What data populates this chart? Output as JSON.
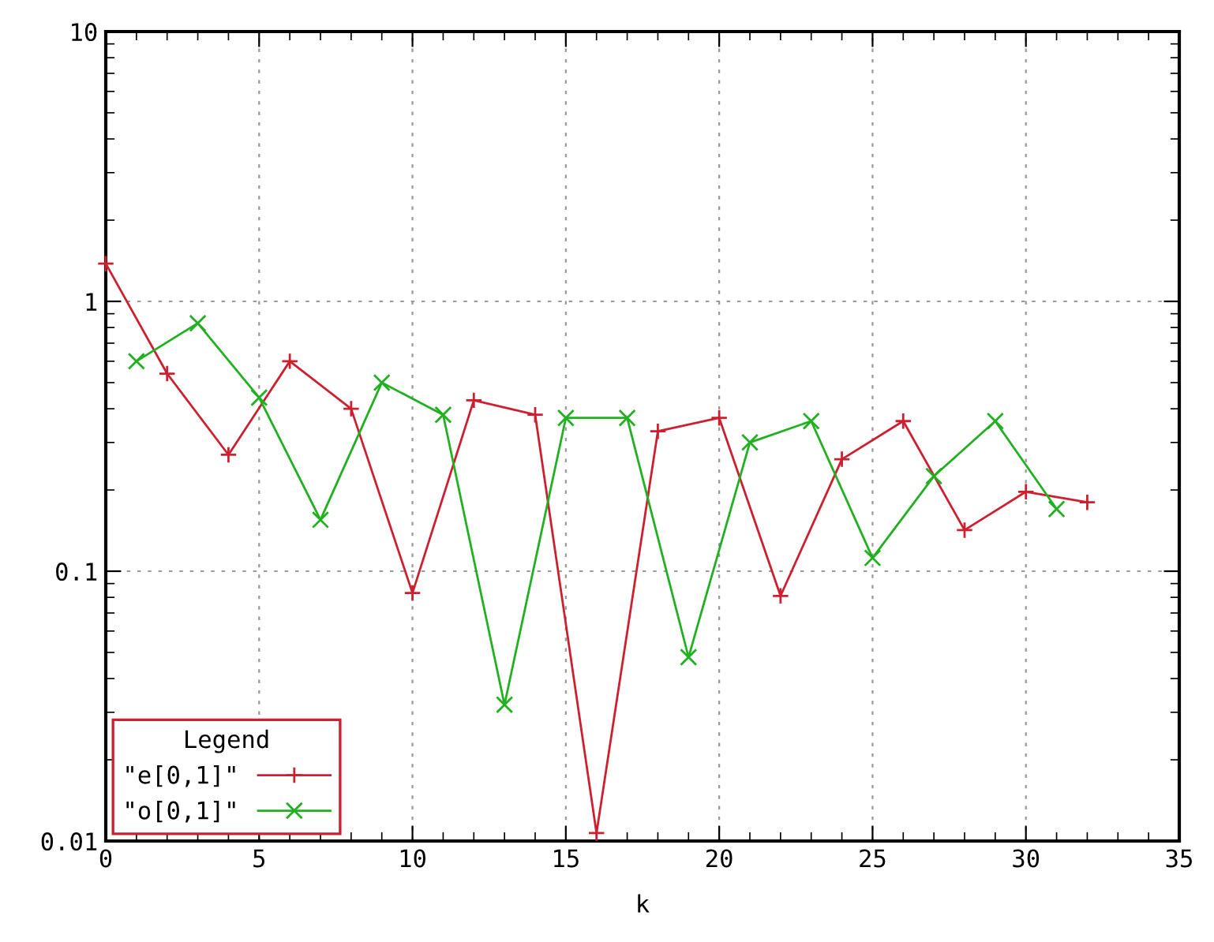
{
  "chart_data": {
    "type": "line",
    "xlabel": "k",
    "legend_title": "Legend",
    "legend": "bottom left",
    "log": "y",
    "grid": true,
    "line_style": "solid",
    "xlim": [
      0,
      35
    ],
    "xticks": [
      0,
      5,
      10,
      15,
      20,
      25,
      30,
      35
    ],
    "ylim": [
      0.01,
      10
    ],
    "yticks": [
      0.01,
      0.1,
      1,
      10
    ],
    "series": [
      {
        "name": "\"e[0,1]\"",
        "color": "#cc2030",
        "marker": "cross",
        "x": [
          0,
          2,
          4,
          6,
          8,
          10,
          12,
          14,
          16,
          18,
          20,
          22,
          24,
          26,
          28,
          30,
          32
        ],
        "values": [
          1.38,
          0.54,
          0.27,
          0.6,
          0.4,
          0.083,
          0.43,
          0.38,
          0.0107,
          0.33,
          0.37,
          0.081,
          0.26,
          0.36,
          0.142,
          0.197,
          0.18
        ]
      },
      {
        "name": "\"o[0,1]\"",
        "color": "#20b020",
        "marker": "x",
        "x": [
          1,
          3,
          5,
          7,
          9,
          11,
          13,
          15,
          17,
          19,
          21,
          23,
          25,
          27,
          29,
          31
        ],
        "values": [
          0.6,
          0.83,
          0.44,
          0.155,
          0.5,
          0.38,
          0.032,
          0.37,
          0.37,
          0.048,
          0.3,
          0.36,
          0.112,
          0.225,
          0.36,
          0.17
        ]
      }
    ]
  }
}
